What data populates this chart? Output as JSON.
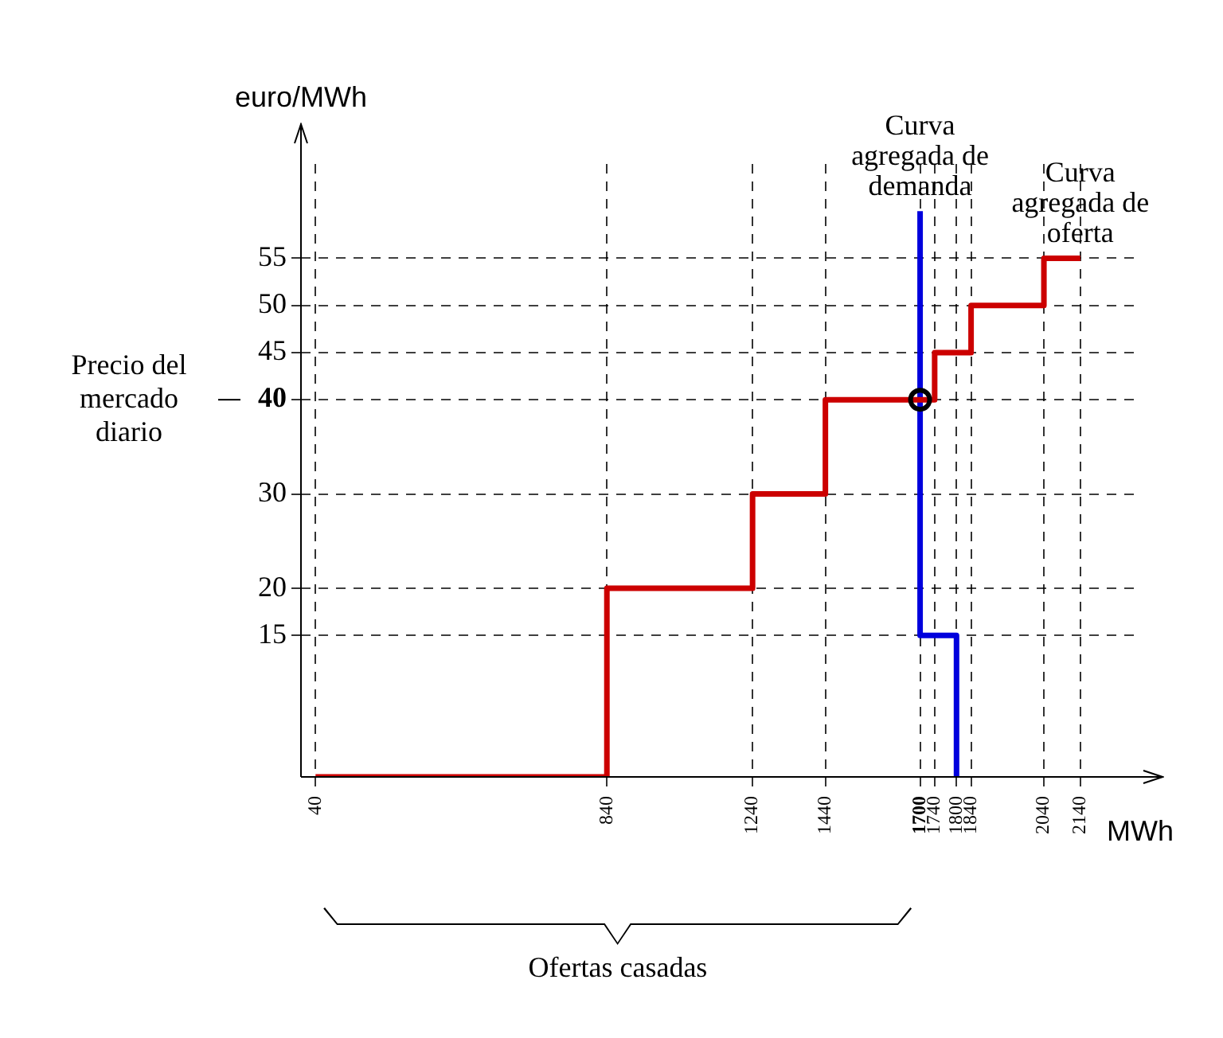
{
  "chart_data": {
    "type": "step",
    "xlabel": "MWh",
    "ylabel": "euro/MWh",
    "xlim": [
      0,
      2300
    ],
    "ylim": [
      0,
      65
    ],
    "xticks": [
      40,
      840,
      1240,
      1440,
      1700,
      1740,
      1800,
      1840,
      2040,
      2140
    ],
    "yticks": [
      15,
      20,
      30,
      40,
      45,
      50,
      55
    ],
    "grid": true,
    "line_style": "solid",
    "legend": false,
    "series": [
      {
        "name": "Curva agregada de oferta",
        "color": "#cc0000",
        "x": [
          40,
          840,
          1240,
          1440,
          1740,
          1840,
          2040,
          2140
        ],
        "values": [
          0,
          20,
          30,
          40,
          45,
          50,
          55,
          55
        ]
      },
      {
        "name": "Curva agregada de demanda",
        "color": "#0000dd",
        "x": [
          1700,
          1700,
          1800
        ],
        "values": [
          60,
          15,
          0
        ]
      },
      {
        "type": "scatter",
        "color": "#000000",
        "marker": "circle",
        "x": [
          1700
        ],
        "values": [
          40
        ]
      }
    ],
    "annotations": [
      "Precio del mercado diario",
      "Ofertas casadas"
    ]
  }
}
